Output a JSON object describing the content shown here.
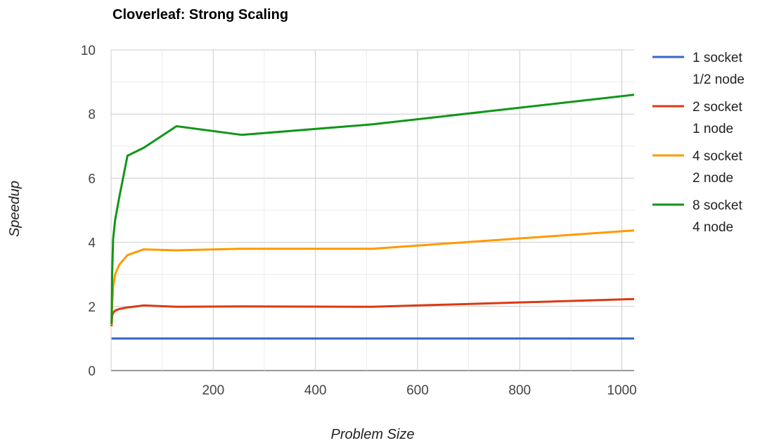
{
  "chart_data": {
    "type": "line",
    "title": "Cloverleaf: Strong Scaling",
    "xlabel": "Problem Size",
    "ylabel": "Speedup",
    "xlim": [
      0,
      1024
    ],
    "ylim": [
      0,
      10
    ],
    "xticks": [
      "200",
      "400",
      "600",
      "800",
      "1000"
    ],
    "yticks": [
      "0",
      "2",
      "4",
      "6",
      "8",
      "10"
    ],
    "grid": true,
    "legend_position": "right",
    "x": [
      1,
      2,
      4,
      8,
      16,
      32,
      64,
      128,
      256,
      512,
      1024
    ],
    "series": [
      {
        "legend_lines": [
          "1 socket",
          "1/2 node"
        ],
        "color": "#3366cc",
        "values": [
          1,
          1,
          1,
          1,
          1,
          1,
          1,
          1,
          1,
          1,
          1
        ]
      },
      {
        "legend_lines": [
          "2 socket",
          "1 node"
        ],
        "color": "#dc3912",
        "values": [
          1.38,
          1.7,
          1.8,
          1.87,
          1.92,
          1.97,
          2.03,
          1.99,
          2.0,
          1.99,
          2.23
        ]
      },
      {
        "legend_lines": [
          "4 socket",
          "2 node"
        ],
        "color": "#ff9900",
        "values": [
          1.42,
          2.05,
          2.6,
          3.0,
          3.3,
          3.6,
          3.78,
          3.75,
          3.8,
          3.8,
          4.37
        ]
      },
      {
        "legend_lines": [
          "8 socket",
          "4 node"
        ],
        "color": "#109618",
        "values": [
          1.45,
          3.0,
          4.1,
          4.7,
          5.4,
          6.7,
          6.95,
          7.62,
          7.35,
          7.68,
          8.6
        ]
      }
    ]
  }
}
